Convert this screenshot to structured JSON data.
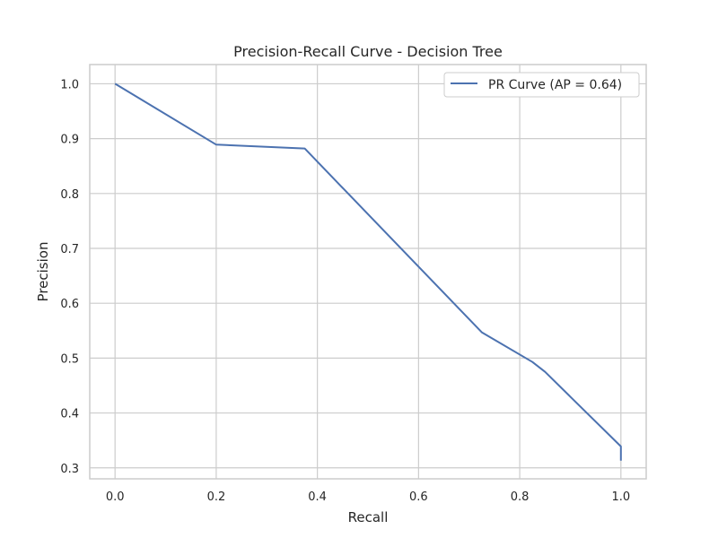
{
  "chart_data": {
    "type": "line",
    "title": "Precision-Recall Curve - Decision Tree",
    "xlabel": "Recall",
    "ylabel": "Precision",
    "xlim": [
      -0.05,
      1.05
    ],
    "ylim": [
      0.28,
      1.035
    ],
    "xticks": [
      0.0,
      0.2,
      0.4,
      0.6,
      0.8,
      1.0
    ],
    "xtick_labels": [
      "0.0",
      "0.2",
      "0.4",
      "0.6",
      "0.8",
      "1.0"
    ],
    "yticks": [
      0.3,
      0.4,
      0.5,
      0.6,
      0.7,
      0.8,
      0.9,
      1.0
    ],
    "ytick_labels": [
      "0.3",
      "0.4",
      "0.5",
      "0.6",
      "0.7",
      "0.8",
      "0.9",
      "1.0"
    ],
    "grid": true,
    "legend_position": "top-right",
    "series": [
      {
        "name": "PR Curve (AP = 0.64)",
        "color": "#4c72b0",
        "x": [
          0.0,
          0.2,
          0.375,
          0.725,
          0.825,
          0.85,
          1.0,
          1.0
        ],
        "y": [
          1.0,
          0.889,
          0.882,
          0.547,
          0.493,
          0.475,
          0.339,
          0.313
        ]
      }
    ]
  }
}
